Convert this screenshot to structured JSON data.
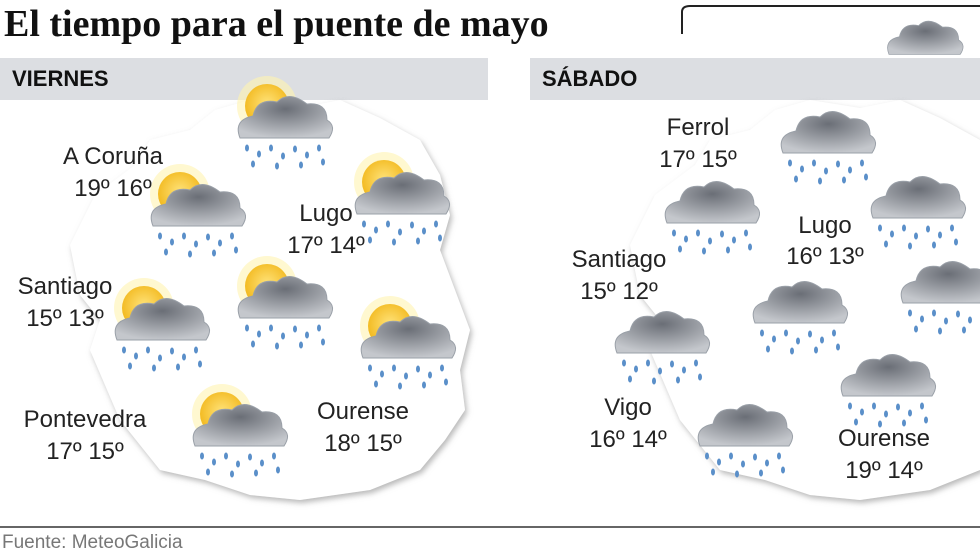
{
  "title": "El tiempo para el puente de mayo",
  "panels": [
    {
      "day": "VIERNES",
      "cities": [
        {
          "name": "A Coruña",
          "max": "19º",
          "min": "16º"
        },
        {
          "name": "Lugo",
          "max": "17º",
          "min": "14º"
        },
        {
          "name": "Santiago",
          "max": "15º",
          "min": "13º"
        },
        {
          "name": "Pontevedra",
          "max": "17º",
          "min": "15º"
        },
        {
          "name": "Ourense",
          "max": "18º",
          "min": "15º"
        }
      ]
    },
    {
      "day": "SÁBADO",
      "cities": [
        {
          "name": "Ferrol",
          "max": "17º",
          "min": "15º"
        },
        {
          "name": "Lugo",
          "max": "16º",
          "min": "13º"
        },
        {
          "name": "Santiago",
          "max": "15º",
          "min": "12º"
        },
        {
          "name": "Vigo",
          "max": "16º",
          "min": "14º"
        },
        {
          "name": "Ourense",
          "max": "19º",
          "min": "14º"
        }
      ]
    }
  ],
  "source": "Fuente: MeteoGalicia"
}
